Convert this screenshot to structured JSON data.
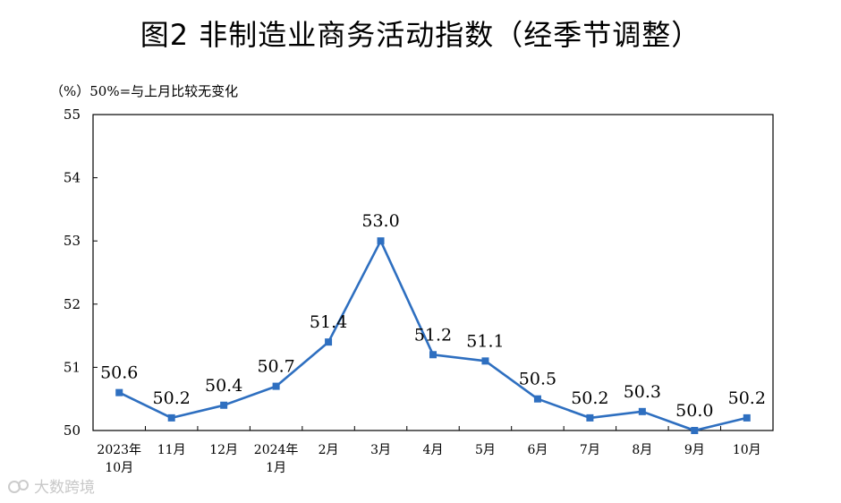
{
  "title": "图2  非制造业商务活动指数（经季节调整）",
  "unit_label": "（%）",
  "note": "50%=与上月比较无变化",
  "watermark": "大数跨境",
  "colors": {
    "line": "#2e6fc0",
    "axis": "#000000",
    "label": "#000000"
  },
  "chart_data": {
    "type": "line",
    "title": "非制造业商务活动指数（经季节调整）",
    "ylabel": "（%）",
    "ylim": [
      50,
      55
    ],
    "yticks": [
      50,
      51,
      52,
      53,
      54,
      55
    ],
    "grid": false,
    "categories": [
      [
        "2023年",
        "10月"
      ],
      [
        "11月"
      ],
      [
        "12月"
      ],
      [
        "2024年",
        "1月"
      ],
      [
        "2月"
      ],
      [
        "3月"
      ],
      [
        "4月"
      ],
      [
        "5月"
      ],
      [
        "6月"
      ],
      [
        "7月"
      ],
      [
        "8月"
      ],
      [
        "9月"
      ],
      [
        "10月"
      ]
    ],
    "series": [
      {
        "values": [
          50.6,
          50.2,
          50.4,
          50.7,
          51.4,
          53.0,
          51.2,
          51.1,
          50.5,
          50.2,
          50.3,
          50.0,
          50.2
        ],
        "labels": [
          "50.6",
          "50.2",
          "50.4",
          "50.7",
          "51.4",
          "53.0",
          "51.2",
          "51.1",
          "50.5",
          "50.2",
          "50.3",
          "50.0",
          "50.2"
        ]
      }
    ]
  }
}
